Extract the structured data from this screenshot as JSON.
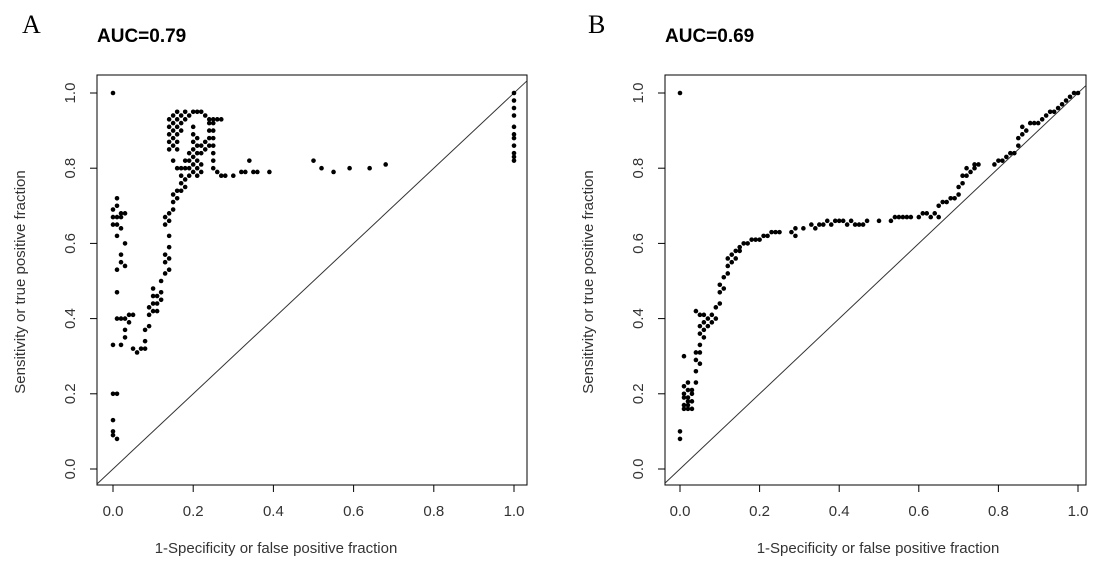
{
  "chart_data": [
    {
      "type": "scatter",
      "panel_label": "A",
      "title": "AUC=0.79",
      "xlabel": "1-Specificity or false positive fraction",
      "ylabel": "Sensitivity or true positive fraction",
      "xlim": [
        0,
        1
      ],
      "ylim": [
        0,
        1
      ],
      "xticks": [
        "0.0",
        "0.2",
        "0.4",
        "0.6",
        "0.8",
        "1.0"
      ],
      "yticks": [
        "0.0",
        "0.2",
        "0.4",
        "0.6",
        "0.8",
        "1.0"
      ],
      "grid": false,
      "reference_line": true,
      "points": [
        [
          0.0,
          1.0
        ],
        [
          0.0,
          0.2
        ],
        [
          0.01,
          0.2
        ],
        [
          0.0,
          0.13
        ],
        [
          0.0,
          0.1
        ],
        [
          0.0,
          0.09
        ],
        [
          0.01,
          0.08
        ],
        [
          0.0,
          0.33
        ],
        [
          0.01,
          0.4
        ],
        [
          0.02,
          0.4
        ],
        [
          0.02,
          0.33
        ],
        [
          0.01,
          0.47
        ],
        [
          0.01,
          0.53
        ],
        [
          0.02,
          0.55
        ],
        [
          0.03,
          0.54
        ],
        [
          0.02,
          0.57
        ],
        [
          0.03,
          0.6
        ],
        [
          0.01,
          0.62
        ],
        [
          0.02,
          0.64
        ],
        [
          0.0,
          0.65
        ],
        [
          0.01,
          0.65
        ],
        [
          0.0,
          0.67
        ],
        [
          0.01,
          0.67
        ],
        [
          0.02,
          0.68
        ],
        [
          0.03,
          0.68
        ],
        [
          0.0,
          0.69
        ],
        [
          0.01,
          0.7
        ],
        [
          0.01,
          0.72
        ],
        [
          0.02,
          0.67
        ],
        [
          0.03,
          0.4
        ],
        [
          0.03,
          0.37
        ],
        [
          0.03,
          0.35
        ],
        [
          0.04,
          0.39
        ],
        [
          0.04,
          0.41
        ],
        [
          0.05,
          0.41
        ],
        [
          0.05,
          0.32
        ],
        [
          0.06,
          0.31
        ],
        [
          0.07,
          0.32
        ],
        [
          0.08,
          0.32
        ],
        [
          0.08,
          0.34
        ],
        [
          0.08,
          0.37
        ],
        [
          0.09,
          0.38
        ],
        [
          0.09,
          0.41
        ],
        [
          0.09,
          0.43
        ],
        [
          0.1,
          0.42
        ],
        [
          0.1,
          0.44
        ],
        [
          0.1,
          0.46
        ],
        [
          0.1,
          0.48
        ],
        [
          0.11,
          0.42
        ],
        [
          0.11,
          0.44
        ],
        [
          0.11,
          0.46
        ],
        [
          0.12,
          0.45
        ],
        [
          0.12,
          0.47
        ],
        [
          0.12,
          0.5
        ],
        [
          0.13,
          0.52
        ],
        [
          0.13,
          0.55
        ],
        [
          0.13,
          0.57
        ],
        [
          0.14,
          0.53
        ],
        [
          0.14,
          0.56
        ],
        [
          0.14,
          0.59
        ],
        [
          0.14,
          0.62
        ],
        [
          0.13,
          0.65
        ],
        [
          0.13,
          0.67
        ],
        [
          0.14,
          0.66
        ],
        [
          0.14,
          0.68
        ],
        [
          0.15,
          0.69
        ],
        [
          0.15,
          0.71
        ],
        [
          0.15,
          0.73
        ],
        [
          0.16,
          0.72
        ],
        [
          0.16,
          0.74
        ],
        [
          0.17,
          0.76
        ],
        [
          0.17,
          0.74
        ],
        [
          0.18,
          0.77
        ],
        [
          0.18,
          0.75
        ],
        [
          0.14,
          0.85
        ],
        [
          0.14,
          0.87
        ],
        [
          0.14,
          0.89
        ],
        [
          0.14,
          0.91
        ],
        [
          0.14,
          0.93
        ],
        [
          0.15,
          0.86
        ],
        [
          0.15,
          0.88
        ],
        [
          0.15,
          0.9
        ],
        [
          0.15,
          0.92
        ],
        [
          0.15,
          0.94
        ],
        [
          0.16,
          0.85
        ],
        [
          0.16,
          0.87
        ],
        [
          0.16,
          0.89
        ],
        [
          0.16,
          0.91
        ],
        [
          0.16,
          0.93
        ],
        [
          0.16,
          0.95
        ],
        [
          0.17,
          0.9
        ],
        [
          0.17,
          0.92
        ],
        [
          0.17,
          0.94
        ],
        [
          0.18,
          0.93
        ],
        [
          0.18,
          0.95
        ],
        [
          0.19,
          0.94
        ],
        [
          0.2,
          0.95
        ],
        [
          0.21,
          0.95
        ],
        [
          0.22,
          0.95
        ],
        [
          0.23,
          0.94
        ],
        [
          0.24,
          0.93
        ],
        [
          0.25,
          0.93
        ],
        [
          0.26,
          0.93
        ],
        [
          0.27,
          0.93
        ],
        [
          0.15,
          0.82
        ],
        [
          0.16,
          0.8
        ],
        [
          0.17,
          0.8
        ],
        [
          0.18,
          0.8
        ],
        [
          0.19,
          0.78
        ],
        [
          0.19,
          0.8
        ],
        [
          0.19,
          0.82
        ],
        [
          0.2,
          0.79
        ],
        [
          0.2,
          0.81
        ],
        [
          0.2,
          0.83
        ],
        [
          0.2,
          0.85
        ],
        [
          0.2,
          0.87
        ],
        [
          0.2,
          0.89
        ],
        [
          0.2,
          0.91
        ],
        [
          0.21,
          0.78
        ],
        [
          0.21,
          0.8
        ],
        [
          0.21,
          0.82
        ],
        [
          0.21,
          0.84
        ],
        [
          0.21,
          0.86
        ],
        [
          0.21,
          0.88
        ],
        [
          0.22,
          0.79
        ],
        [
          0.22,
          0.81
        ],
        [
          0.22,
          0.84
        ],
        [
          0.22,
          0.86
        ],
        [
          0.23,
          0.85
        ],
        [
          0.23,
          0.87
        ],
        [
          0.24,
          0.86
        ],
        [
          0.24,
          0.88
        ],
        [
          0.24,
          0.9
        ],
        [
          0.24,
          0.92
        ],
        [
          0.25,
          0.84
        ],
        [
          0.25,
          0.86
        ],
        [
          0.25,
          0.88
        ],
        [
          0.25,
          0.9
        ],
        [
          0.25,
          0.92
        ],
        [
          0.25,
          0.8
        ],
        [
          0.25,
          0.82
        ],
        [
          0.26,
          0.79
        ],
        [
          0.27,
          0.78
        ],
        [
          0.28,
          0.78
        ],
        [
          0.3,
          0.78
        ],
        [
          0.32,
          0.79
        ],
        [
          0.33,
          0.79
        ],
        [
          0.34,
          0.82
        ],
        [
          0.35,
          0.79
        ],
        [
          0.36,
          0.79
        ],
        [
          0.39,
          0.79
        ],
        [
          0.17,
          0.78
        ],
        [
          0.19,
          0.84
        ],
        [
          0.18,
          0.82
        ],
        [
          0.5,
          0.82
        ],
        [
          0.52,
          0.8
        ],
        [
          0.55,
          0.79
        ],
        [
          0.59,
          0.8
        ],
        [
          0.64,
          0.8
        ],
        [
          0.68,
          0.81
        ],
        [
          1.0,
          1.0
        ],
        [
          1.0,
          0.98
        ],
        [
          1.0,
          0.96
        ],
        [
          1.0,
          0.94
        ],
        [
          1.0,
          0.91
        ],
        [
          1.0,
          0.89
        ],
        [
          1.0,
          0.88
        ],
        [
          1.0,
          0.86
        ],
        [
          1.0,
          0.84
        ],
        [
          1.0,
          0.83
        ],
        [
          1.0,
          0.82
        ]
      ]
    },
    {
      "type": "scatter",
      "panel_label": "B",
      "title": "AUC=0.69",
      "xlabel": "1-Specificity or false positive fraction",
      "ylabel": "Sensitivity or true positive fraction",
      "xlim": [
        0,
        1
      ],
      "ylim": [
        0,
        1
      ],
      "xticks": [
        "0.0",
        "0.2",
        "0.4",
        "0.6",
        "0.8",
        "1.0"
      ],
      "yticks": [
        "0.0",
        "0.2",
        "0.4",
        "0.6",
        "0.8",
        "1.0"
      ],
      "grid": false,
      "reference_line": true,
      "points": [
        [
          0.0,
          1.0
        ],
        [
          0.0,
          0.1
        ],
        [
          0.0,
          0.08
        ],
        [
          0.01,
          0.3
        ],
        [
          0.01,
          0.22
        ],
        [
          0.01,
          0.2
        ],
        [
          0.01,
          0.19
        ],
        [
          0.01,
          0.17
        ],
        [
          0.01,
          0.16
        ],
        [
          0.02,
          0.21
        ],
        [
          0.02,
          0.19
        ],
        [
          0.02,
          0.18
        ],
        [
          0.02,
          0.17
        ],
        [
          0.02,
          0.16
        ],
        [
          0.02,
          0.23
        ],
        [
          0.03,
          0.21
        ],
        [
          0.03,
          0.2
        ],
        [
          0.03,
          0.18
        ],
        [
          0.03,
          0.16
        ],
        [
          0.04,
          0.23
        ],
        [
          0.04,
          0.26
        ],
        [
          0.04,
          0.29
        ],
        [
          0.04,
          0.31
        ],
        [
          0.04,
          0.42
        ],
        [
          0.05,
          0.28
        ],
        [
          0.05,
          0.31
        ],
        [
          0.05,
          0.33
        ],
        [
          0.05,
          0.36
        ],
        [
          0.05,
          0.38
        ],
        [
          0.05,
          0.41
        ],
        [
          0.06,
          0.35
        ],
        [
          0.06,
          0.37
        ],
        [
          0.06,
          0.39
        ],
        [
          0.06,
          0.41
        ],
        [
          0.07,
          0.38
        ],
        [
          0.07,
          0.4
        ],
        [
          0.08,
          0.39
        ],
        [
          0.08,
          0.41
        ],
        [
          0.09,
          0.4
        ],
        [
          0.09,
          0.43
        ],
        [
          0.1,
          0.44
        ],
        [
          0.1,
          0.47
        ],
        [
          0.1,
          0.49
        ],
        [
          0.11,
          0.48
        ],
        [
          0.11,
          0.51
        ],
        [
          0.12,
          0.52
        ],
        [
          0.12,
          0.54
        ],
        [
          0.12,
          0.56
        ],
        [
          0.13,
          0.55
        ],
        [
          0.13,
          0.57
        ],
        [
          0.14,
          0.56
        ],
        [
          0.14,
          0.58
        ],
        [
          0.15,
          0.58
        ],
        [
          0.15,
          0.59
        ],
        [
          0.16,
          0.6
        ],
        [
          0.17,
          0.6
        ],
        [
          0.18,
          0.61
        ],
        [
          0.19,
          0.61
        ],
        [
          0.2,
          0.61
        ],
        [
          0.21,
          0.62
        ],
        [
          0.22,
          0.62
        ],
        [
          0.23,
          0.63
        ],
        [
          0.24,
          0.63
        ],
        [
          0.25,
          0.63
        ],
        [
          0.28,
          0.63
        ],
        [
          0.29,
          0.64
        ],
        [
          0.29,
          0.62
        ],
        [
          0.31,
          0.64
        ],
        [
          0.33,
          0.65
        ],
        [
          0.34,
          0.64
        ],
        [
          0.35,
          0.65
        ],
        [
          0.36,
          0.65
        ],
        [
          0.37,
          0.66
        ],
        [
          0.38,
          0.65
        ],
        [
          0.39,
          0.66
        ],
        [
          0.4,
          0.66
        ],
        [
          0.41,
          0.66
        ],
        [
          0.42,
          0.65
        ],
        [
          0.43,
          0.66
        ],
        [
          0.44,
          0.65
        ],
        [
          0.45,
          0.65
        ],
        [
          0.46,
          0.65
        ],
        [
          0.47,
          0.66
        ],
        [
          0.5,
          0.66
        ],
        [
          0.53,
          0.66
        ],
        [
          0.54,
          0.67
        ],
        [
          0.55,
          0.67
        ],
        [
          0.56,
          0.67
        ],
        [
          0.57,
          0.67
        ],
        [
          0.58,
          0.67
        ],
        [
          0.6,
          0.67
        ],
        [
          0.61,
          0.68
        ],
        [
          0.62,
          0.68
        ],
        [
          0.63,
          0.67
        ],
        [
          0.64,
          0.68
        ],
        [
          0.65,
          0.7
        ],
        [
          0.65,
          0.67
        ],
        [
          0.66,
          0.71
        ],
        [
          0.67,
          0.71
        ],
        [
          0.68,
          0.72
        ],
        [
          0.69,
          0.72
        ],
        [
          0.7,
          0.73
        ],
        [
          0.7,
          0.75
        ],
        [
          0.71,
          0.76
        ],
        [
          0.71,
          0.78
        ],
        [
          0.72,
          0.78
        ],
        [
          0.72,
          0.8
        ],
        [
          0.73,
          0.79
        ],
        [
          0.74,
          0.8
        ],
        [
          0.74,
          0.81
        ],
        [
          0.75,
          0.81
        ],
        [
          0.79,
          0.81
        ],
        [
          0.8,
          0.82
        ],
        [
          0.81,
          0.82
        ],
        [
          0.82,
          0.83
        ],
        [
          0.83,
          0.84
        ],
        [
          0.84,
          0.84
        ],
        [
          0.85,
          0.86
        ],
        [
          0.85,
          0.88
        ],
        [
          0.86,
          0.89
        ],
        [
          0.86,
          0.91
        ],
        [
          0.87,
          0.9
        ],
        [
          0.88,
          0.92
        ],
        [
          0.89,
          0.92
        ],
        [
          0.9,
          0.92
        ],
        [
          0.91,
          0.93
        ],
        [
          0.92,
          0.94
        ],
        [
          0.93,
          0.95
        ],
        [
          0.94,
          0.95
        ],
        [
          0.95,
          0.96
        ],
        [
          0.96,
          0.97
        ],
        [
          0.97,
          0.98
        ],
        [
          0.98,
          0.99
        ],
        [
          0.99,
          1.0
        ],
        [
          1.0,
          1.0
        ]
      ]
    }
  ]
}
